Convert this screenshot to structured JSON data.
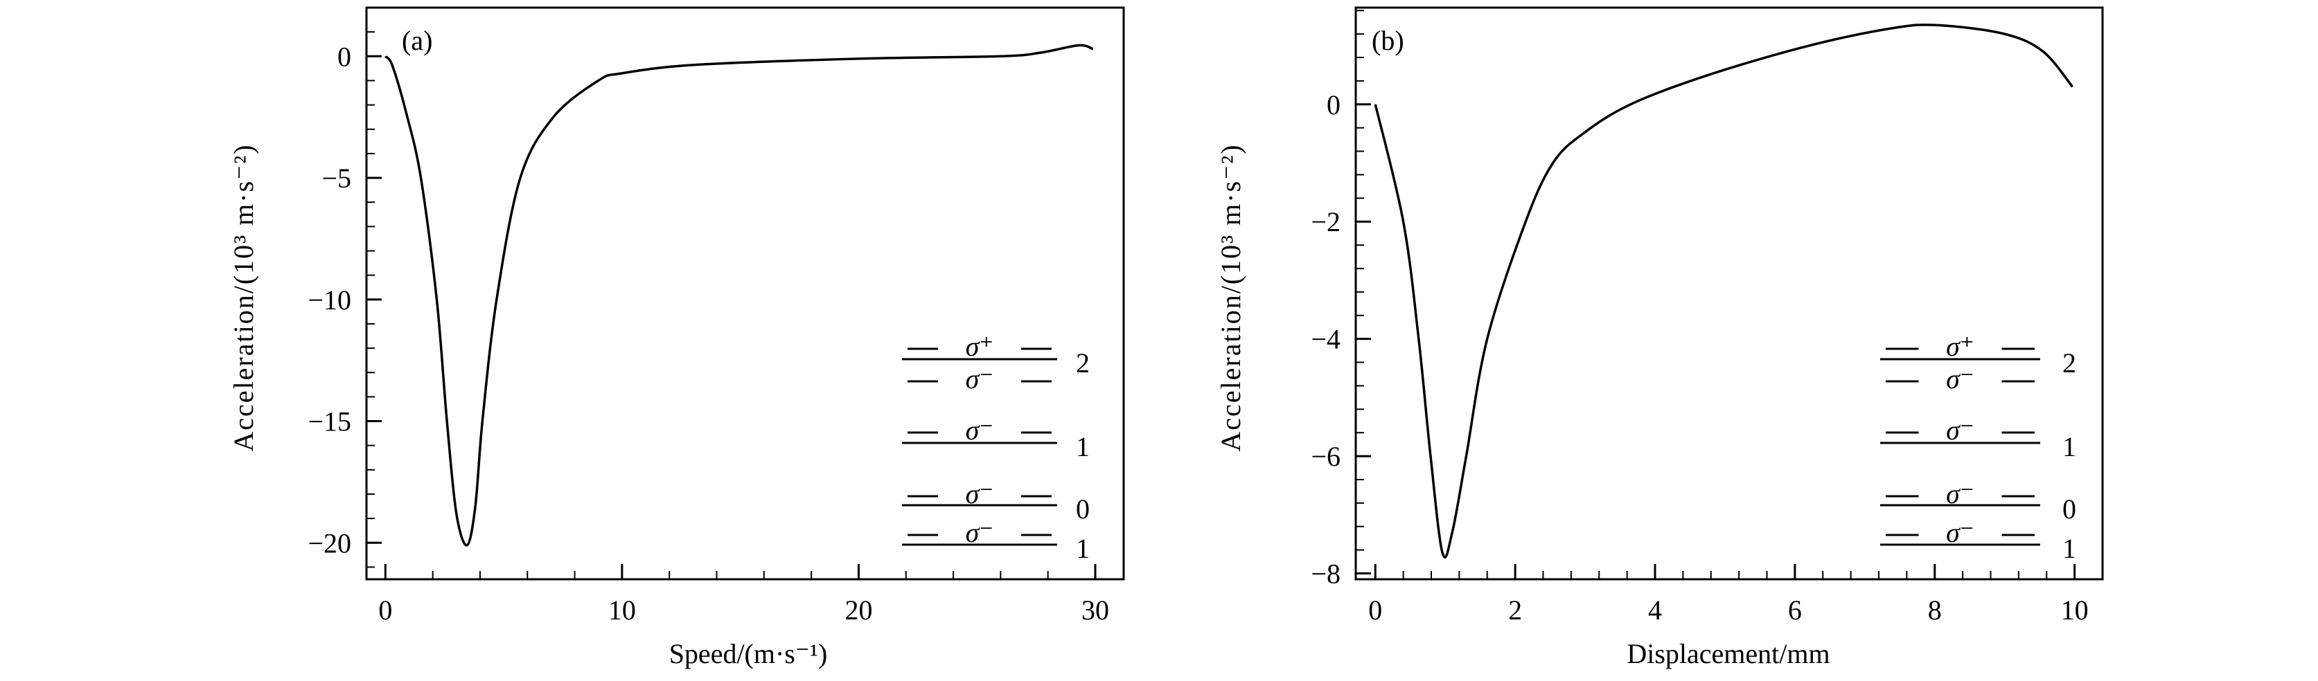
{
  "chart_data": [
    {
      "type": "line",
      "panel_label": "(a)",
      "xlabel": "Speed/(m·s⁻¹)",
      "ylabel": "Acceleration/(10³ m·s⁻²)",
      "xlim": [
        -0.8,
        31.2
      ],
      "ylim": [
        -21.5,
        2
      ],
      "xticks": [
        0,
        10,
        20,
        30
      ],
      "xtick_labels": [
        "0",
        "10",
        "20",
        "30"
      ],
      "xminor": 2,
      "yticks": [
        0,
        -5,
        -10,
        -15,
        -20
      ],
      "ytick_labels": [
        "0",
        "−5",
        "−10",
        "−15",
        "−20"
      ],
      "yminor": 1,
      "grid": false,
      "series": [
        {
          "color": "#000000",
          "x": [
            0,
            0.3,
            0.9,
            1.5,
            2.17,
            2.6,
            3.0,
            3.45,
            3.8,
            4.1,
            4.7,
            5.7,
            7.1,
            9.0,
            10,
            13.1,
            20,
            26,
            27.7,
            29.3,
            29.9
          ],
          "y": [
            0,
            -0.4,
            -2.4,
            -5,
            -10,
            -15,
            -18.8,
            -20.1,
            -18.5,
            -15,
            -10,
            -5,
            -2.5,
            -1.0,
            -0.7,
            -0.35,
            -0.1,
            0,
            0.15,
            0.45,
            0.3
          ]
        }
      ],
      "legend_diagram": {
        "levels": [
          "2",
          "1",
          "0",
          "1"
        ],
        "transitions": [
          "σ⁺",
          "σ⁻",
          "σ⁻",
          "σ⁻",
          "σ⁻"
        ]
      }
    },
    {
      "type": "line",
      "panel_label": "(b)",
      "xlabel": "Displacement/mm",
      "ylabel": "Acceleration/(10³ m·s⁻²)",
      "xlim": [
        -0.28,
        10.4
      ],
      "ylim": [
        -8.1,
        1.65
      ],
      "xticks": [
        0,
        2,
        4,
        6,
        8,
        10
      ],
      "xtick_labels": [
        "0",
        "2",
        "4",
        "6",
        "8",
        "10"
      ],
      "xminor": 0.4,
      "yticks": [
        0,
        -2,
        -4,
        -6,
        -8
      ],
      "ytick_labels": [
        "0",
        "−2",
        "−4",
        "−6",
        "−8"
      ],
      "yminor": 0.4,
      "grid": false,
      "series": [
        {
          "color": "#000000",
          "x": [
            0,
            0.4,
            0.62,
            0.79,
            0.96,
            1.1,
            1.3,
            1.6,
            2.15,
            2.54,
            2.97,
            3.65,
            4.76,
            6.2,
            7.4,
            8.05,
            9.0,
            9.55,
            9.97
          ],
          "y": [
            0,
            -2,
            -4,
            -6,
            -7.65,
            -7.3,
            -6,
            -4,
            -2,
            -1,
            -0.5,
            0,
            0.5,
            1.0,
            1.3,
            1.35,
            1.2,
            0.9,
            0.3
          ]
        }
      ],
      "legend_diagram": {
        "levels": [
          "2",
          "1",
          "0",
          "1"
        ],
        "transitions": [
          "σ⁺",
          "σ⁻",
          "σ⁻",
          "σ⁻",
          "σ⁻"
        ]
      }
    }
  ]
}
